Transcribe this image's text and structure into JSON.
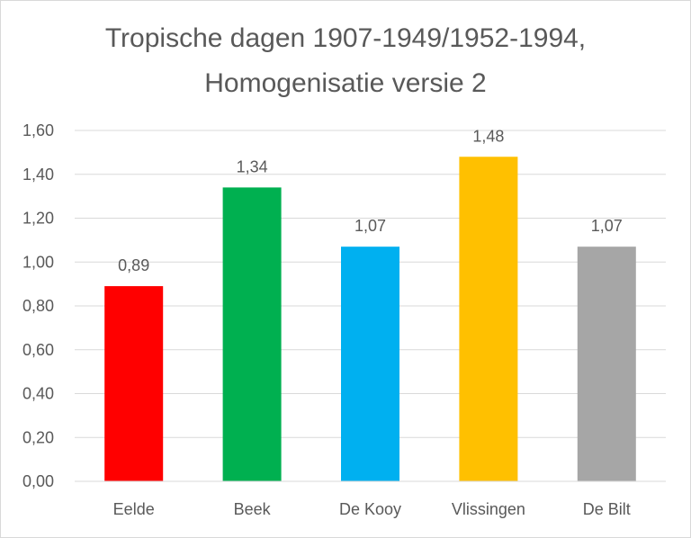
{
  "chart_data": {
    "type": "bar",
    "title": "Tropische dagen 1907-1949/1952-1994,",
    "subtitle": "Homogenisatie versie 2",
    "categories": [
      "Eelde",
      "Beek",
      "De Kooy",
      "Vlissingen",
      "De Bilt"
    ],
    "values": [
      0.89,
      1.34,
      1.07,
      1.48,
      1.07
    ],
    "data_labels": [
      "0,89",
      "1,34",
      "1,07",
      "1,48",
      "1,07"
    ],
    "colors": [
      "#ff0000",
      "#00b050",
      "#00b0f0",
      "#ffc000",
      "#a6a6a6"
    ],
    "ylim": [
      0,
      1.6
    ],
    "yticks": [
      "0,00",
      "0,20",
      "0,40",
      "0,60",
      "0,80",
      "1,00",
      "1,20",
      "1,40",
      "1,60"
    ],
    "grid": true,
    "xlabel": "",
    "ylabel": ""
  }
}
